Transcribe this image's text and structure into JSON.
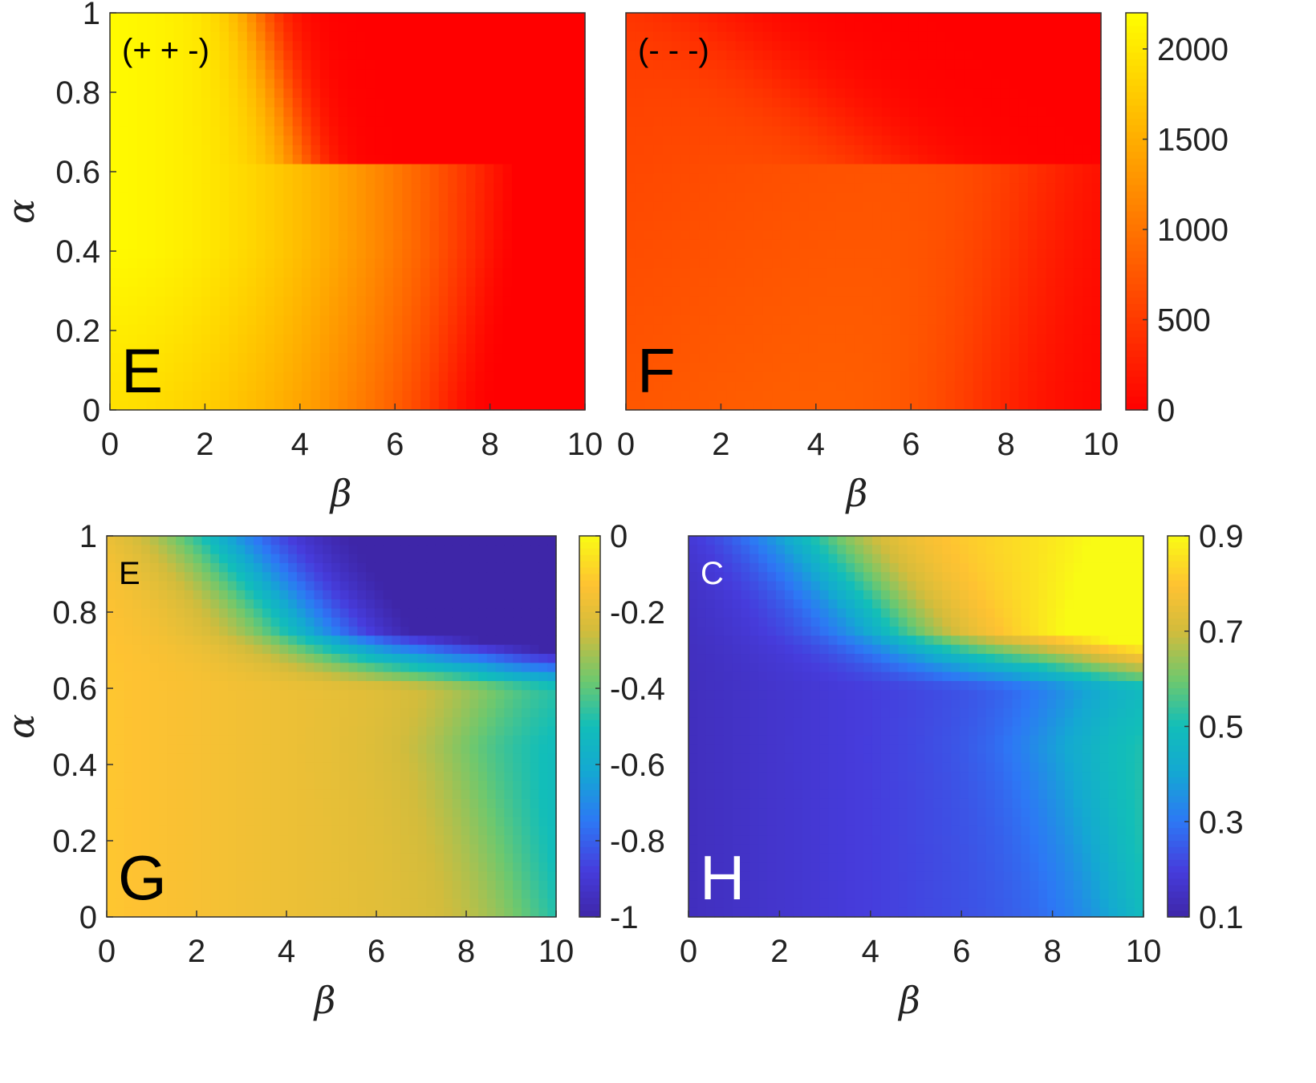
{
  "colors": {
    "black": "#000000",
    "white": "#ffffff",
    "frame": "#333333"
  },
  "chart_data": [
    {
      "type": "heatmap",
      "panel": "E",
      "annotation": "(+ + -)",
      "xlabel": "β",
      "ylabel": "α",
      "xlim": [
        0,
        10
      ],
      "ylim": [
        0,
        1
      ],
      "xticks": [
        "0",
        "2",
        "4",
        "6",
        "8",
        "10"
      ],
      "yticks": [
        "0",
        "0.2",
        "0.4",
        "0.6",
        "0.8",
        "1"
      ],
      "colormap": "autumn",
      "clim": [
        0,
        2200
      ],
      "colorbar_ticks": [],
      "label_color": "black",
      "z_description_values": {
        "high_region": "alpha >= 0.6 and beta <= 3.5 approx 2000-2200",
        "low_region": "alpha >= 0.62 and beta >= 5 approx 0",
        "right_region": "beta >= 8.5 approx 0"
      }
    },
    {
      "type": "heatmap",
      "panel": "F",
      "annotation": "(- - -)",
      "xlabel": "β",
      "ylabel": "",
      "xlim": [
        0,
        10
      ],
      "ylim": [
        0,
        1
      ],
      "xticks": [
        "0",
        "2",
        "4",
        "6",
        "8",
        "10"
      ],
      "yticks": [],
      "colormap": "autumn",
      "clim": [
        0,
        2200
      ],
      "colorbar_ticks": [
        "0",
        "500",
        "1000",
        "1500",
        "2000"
      ],
      "label_color": "black"
    },
    {
      "type": "heatmap",
      "panel": "G",
      "annotation": "E",
      "xlabel": "β",
      "ylabel": "α",
      "xlim": [
        0,
        10
      ],
      "ylim": [
        0,
        1
      ],
      "xticks": [
        "0",
        "2",
        "4",
        "6",
        "8",
        "10"
      ],
      "yticks": [
        "0",
        "0.2",
        "0.4",
        "0.6",
        "0.8",
        "1"
      ],
      "colormap": "parula",
      "clim": [
        -1,
        0
      ],
      "colorbar_ticks": [
        "-1",
        "-0.8",
        "-0.6",
        "-0.4",
        "-0.2",
        "0"
      ],
      "label_color": "black"
    },
    {
      "type": "heatmap",
      "panel": "H",
      "annotation": "C",
      "xlabel": "β",
      "ylabel": "",
      "xlim": [
        0,
        10
      ],
      "ylim": [
        0,
        1
      ],
      "xticks": [
        "0",
        "2",
        "4",
        "6",
        "8",
        "10"
      ],
      "yticks": [],
      "colormap": "parula",
      "clim": [
        0.1,
        0.9
      ],
      "colorbar_ticks": [
        "0.1",
        "0.3",
        "0.5",
        "0.7",
        "0.9"
      ],
      "label_color": "white"
    }
  ]
}
